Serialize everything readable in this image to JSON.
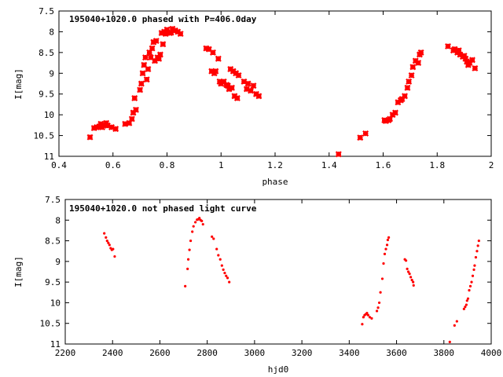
{
  "chart_data": [
    {
      "type": "scatter",
      "title": "195040+1020.0 phased with P=406.0day",
      "xlabel": "phase",
      "ylabel": "I[mag]",
      "xlim": [
        0.4,
        2.0
      ],
      "ylim": [
        11.0,
        7.5
      ],
      "y_inverted": true,
      "grid": false,
      "marker_color": "#ff0000",
      "x_ticks": [
        "0.4",
        "0.6",
        "0.8",
        "1",
        "1.2",
        "1.4",
        "1.6",
        "1.8",
        "2"
      ],
      "y_ticks": [
        "7.5",
        "8",
        "8.5",
        "9",
        "9.5",
        "10",
        "10.5",
        "11"
      ],
      "series": [
        {
          "points": [
            [
              0.515,
              10.54
            ],
            [
              0.53,
              10.32
            ],
            [
              0.54,
              10.3
            ],
            [
              0.55,
              10.28
            ],
            [
              0.555,
              10.22
            ],
            [
              0.56,
              10.3
            ],
            [
              0.565,
              10.25
            ],
            [
              0.575,
              10.2
            ],
            [
              0.58,
              10.26
            ],
            [
              0.595,
              10.3
            ],
            [
              0.61,
              10.34
            ],
            [
              0.645,
              10.22
            ],
            [
              0.66,
              10.2
            ],
            [
              0.67,
              10.1
            ],
            [
              0.675,
              9.95
            ],
            [
              0.68,
              9.6
            ],
            [
              0.685,
              9.88
            ],
            [
              0.7,
              9.4
            ],
            [
              0.705,
              9.25
            ],
            [
              0.71,
              9.0
            ],
            [
              0.715,
              8.8
            ],
            [
              0.72,
              8.62
            ],
            [
              0.725,
              9.15
            ],
            [
              0.73,
              8.9
            ],
            [
              0.735,
              8.5
            ],
            [
              0.74,
              8.62
            ],
            [
              0.745,
              8.4
            ],
            [
              0.75,
              8.25
            ],
            [
              0.755,
              8.7
            ],
            [
              0.76,
              8.22
            ],
            [
              0.765,
              8.62
            ],
            [
              0.77,
              8.65
            ],
            [
              0.775,
              8.55
            ],
            [
              0.78,
              8.03
            ],
            [
              0.785,
              8.3
            ],
            [
              0.79,
              8.0
            ],
            [
              0.795,
              8.05
            ],
            [
              0.8,
              7.95
            ],
            [
              0.81,
              8.03
            ],
            [
              0.815,
              8.02
            ],
            [
              0.82,
              7.93
            ],
            [
              0.83,
              7.97
            ],
            [
              0.84,
              8.0
            ],
            [
              0.85,
              8.05
            ],
            [
              0.945,
              8.4
            ],
            [
              0.955,
              8.42
            ],
            [
              0.965,
              8.95
            ],
            [
              0.97,
              8.5
            ],
            [
              0.975,
              9.0
            ],
            [
              0.98,
              8.95
            ],
            [
              0.99,
              8.65
            ],
            [
              0.995,
              9.2
            ],
            [
              1.0,
              9.25
            ],
            [
              1.01,
              9.2
            ],
            [
              1.02,
              9.28
            ],
            [
              1.025,
              9.3
            ],
            [
              1.03,
              9.38
            ],
            [
              1.035,
              8.9
            ],
            [
              1.04,
              9.35
            ],
            [
              1.045,
              8.95
            ],
            [
              1.05,
              9.55
            ],
            [
              1.055,
              9.0
            ],
            [
              1.06,
              9.6
            ],
            [
              1.065,
              9.05
            ],
            [
              1.085,
              9.2
            ],
            [
              1.095,
              9.38
            ],
            [
              1.1,
              9.25
            ],
            [
              1.11,
              9.42
            ],
            [
              1.12,
              9.3
            ],
            [
              1.13,
              9.5
            ],
            [
              1.14,
              9.55
            ],
            [
              1.435,
              10.95
            ],
            [
              1.515,
              10.55
            ],
            [
              1.535,
              10.45
            ],
            [
              1.605,
              10.13
            ],
            [
              1.61,
              10.15
            ],
            [
              1.62,
              10.13
            ],
            [
              1.625,
              10.1
            ],
            [
              1.635,
              10.0
            ],
            [
              1.645,
              9.95
            ],
            [
              1.655,
              9.7
            ],
            [
              1.665,
              9.65
            ],
            [
              1.67,
              9.62
            ],
            [
              1.68,
              9.55
            ],
            [
              1.69,
              9.35
            ],
            [
              1.695,
              9.2
            ],
            [
              1.705,
              9.05
            ],
            [
              1.71,
              8.85
            ],
            [
              1.72,
              8.7
            ],
            [
              1.73,
              8.75
            ],
            [
              1.735,
              8.55
            ],
            [
              1.74,
              8.5
            ],
            [
              1.84,
              8.35
            ],
            [
              1.86,
              8.45
            ],
            [
              1.865,
              8.42
            ],
            [
              1.875,
              8.5
            ],
            [
              1.88,
              8.45
            ],
            [
              1.885,
              8.55
            ],
            [
              1.895,
              8.6
            ],
            [
              1.9,
              8.58
            ],
            [
              1.905,
              8.65
            ],
            [
              1.91,
              8.72
            ],
            [
              1.915,
              8.8
            ],
            [
              1.92,
              8.75
            ],
            [
              1.93,
              8.68
            ],
            [
              1.94,
              8.88
            ]
          ]
        }
      ]
    },
    {
      "type": "scatter",
      "title": "195040+1020.0 not phased light curve",
      "xlabel": "hjd0",
      "ylabel": "I[mag]",
      "xlim": [
        2200,
        4000
      ],
      "ylim": [
        11.0,
        7.5
      ],
      "y_inverted": true,
      "grid": false,
      "marker_color": "#ff0000",
      "x_ticks": [
        "2200",
        "2400",
        "2600",
        "2800",
        "3000",
        "3200",
        "3400",
        "3600",
        "3800",
        "4000"
      ],
      "y_ticks": [
        "7.5",
        "8",
        "8.5",
        "9",
        "9.5",
        "10",
        "10.5",
        "11"
      ],
      "series": [
        {
          "points": [
            [
              2365,
              8.32
            ],
            [
              2372,
              8.42
            ],
            [
              2377,
              8.5
            ],
            [
              2382,
              8.55
            ],
            [
              2387,
              8.6
            ],
            [
              2392,
              8.68
            ],
            [
              2397,
              8.72
            ],
            [
              2402,
              8.7
            ],
            [
              2409,
              8.88
            ],
            [
              2707,
              9.6
            ],
            [
              2717,
              9.18
            ],
            [
              2720,
              8.95
            ],
            [
              2725,
              8.72
            ],
            [
              2730,
              8.5
            ],
            [
              2737,
              8.28
            ],
            [
              2742,
              8.15
            ],
            [
              2750,
              8.05
            ],
            [
              2757,
              7.99
            ],
            [
              2762,
              7.98
            ],
            [
              2767,
              7.95
            ],
            [
              2772,
              8.0
            ],
            [
              2777,
              8.02
            ],
            [
              2782,
              8.1
            ],
            [
              2820,
              8.4
            ],
            [
              2827,
              8.45
            ],
            [
              2840,
              8.7
            ],
            [
              2847,
              8.85
            ],
            [
              2855,
              8.95
            ],
            [
              2862,
              9.1
            ],
            [
              2868,
              9.2
            ],
            [
              2874,
              9.28
            ],
            [
              2880,
              9.35
            ],
            [
              2886,
              9.4
            ],
            [
              2893,
              9.5
            ],
            [
              3455,
              10.52
            ],
            [
              3460,
              10.35
            ],
            [
              3465,
              10.3
            ],
            [
              3470,
              10.28
            ],
            [
              3475,
              10.25
            ],
            [
              3480,
              10.3
            ],
            [
              3487,
              10.35
            ],
            [
              3495,
              10.38
            ],
            [
              3517,
              10.2
            ],
            [
              3522,
              10.12
            ],
            [
              3527,
              10.0
            ],
            [
              3532,
              9.75
            ],
            [
              3540,
              9.42
            ],
            [
              3545,
              9.05
            ],
            [
              3550,
              8.82
            ],
            [
              3555,
              8.7
            ],
            [
              3560,
              8.6
            ],
            [
              3563,
              8.48
            ],
            [
              3567,
              8.42
            ],
            [
              3635,
              8.95
            ],
            [
              3640,
              8.98
            ],
            [
              3645,
              9.18
            ],
            [
              3650,
              9.25
            ],
            [
              3655,
              9.3
            ],
            [
              3660,
              9.38
            ],
            [
              3665,
              9.45
            ],
            [
              3670,
              9.5
            ],
            [
              3672,
              9.58
            ],
            [
              3825,
              10.95
            ],
            [
              3845,
              10.55
            ],
            [
              3855,
              10.45
            ],
            [
              3885,
              10.15
            ],
            [
              3890,
              10.1
            ],
            [
              3895,
              10.05
            ],
            [
              3898,
              9.95
            ],
            [
              3902,
              9.9
            ],
            [
              3907,
              9.7
            ],
            [
              3912,
              9.6
            ],
            [
              3917,
              9.5
            ],
            [
              3922,
              9.35
            ],
            [
              3927,
              9.2
            ],
            [
              3930,
              9.1
            ],
            [
              3935,
              8.9
            ],
            [
              3940,
              8.75
            ],
            [
              3944,
              8.62
            ],
            [
              3948,
              8.5
            ]
          ]
        }
      ]
    }
  ]
}
